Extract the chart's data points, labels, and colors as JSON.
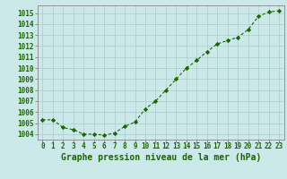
{
  "x": [
    0,
    1,
    2,
    3,
    4,
    5,
    6,
    7,
    8,
    9,
    10,
    11,
    12,
    13,
    14,
    15,
    16,
    17,
    18,
    19,
    20,
    21,
    22,
    23
  ],
  "y": [
    1005.3,
    1005.3,
    1004.6,
    1004.4,
    1004.0,
    1004.0,
    1003.9,
    1004.1,
    1004.7,
    1005.1,
    1006.3,
    1007.0,
    1008.0,
    1009.0,
    1010.0,
    1010.7,
    1011.5,
    1012.2,
    1012.5,
    1012.8,
    1013.5,
    1014.7,
    1015.1,
    1015.2
  ],
  "xlim_min": -0.5,
  "xlim_max": 23.5,
  "ylim_min": 1003.5,
  "ylim_max": 1015.7,
  "yticks": [
    1004,
    1005,
    1006,
    1007,
    1008,
    1009,
    1010,
    1011,
    1012,
    1013,
    1014,
    1015
  ],
  "xticks": [
    0,
    1,
    2,
    3,
    4,
    5,
    6,
    7,
    8,
    9,
    10,
    11,
    12,
    13,
    14,
    15,
    16,
    17,
    18,
    19,
    20,
    21,
    22,
    23
  ],
  "xlabel": "Graphe pression niveau de la mer (hPa)",
  "line_color": "#1a6600",
  "marker": "D",
  "marker_size": 2.2,
  "bg_color": "#cce9e9",
  "grid_color": "#aacccc",
  "text_color": "#1a6600",
  "tick_fontsize": 5.5,
  "label_fontsize": 7.0,
  "linewidth": 0.8
}
